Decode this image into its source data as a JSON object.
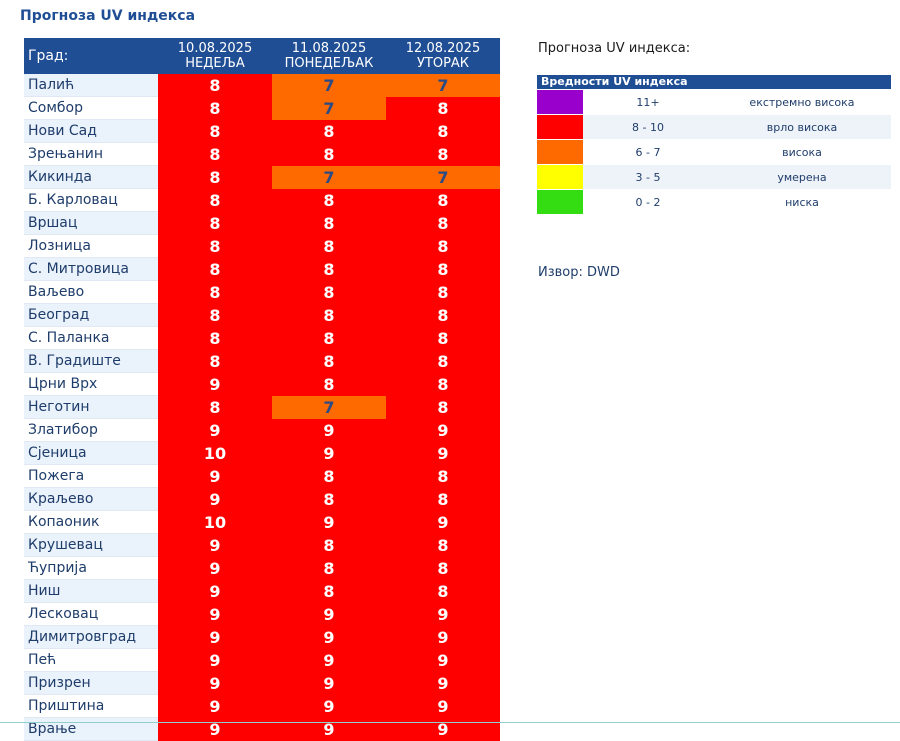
{
  "page_title": "Прогноза UV индекса",
  "table": {
    "city_header": "Град:",
    "days": [
      {
        "date": "10.08.2025",
        "weekday": "НЕДЕЉА"
      },
      {
        "date": "11.08.2025",
        "weekday": "ПОНЕДЕЉАК"
      },
      {
        "date": "12.08.2025",
        "weekday": "УТОРАК"
      }
    ],
    "rows": [
      {
        "city": "Палић",
        "values": [
          "8",
          "7",
          "7"
        ]
      },
      {
        "city": "Сомбор",
        "values": [
          "8",
          "7",
          "8"
        ]
      },
      {
        "city": "Нови Сад",
        "values": [
          "8",
          "8",
          "8"
        ]
      },
      {
        "city": "Зрењанин",
        "values": [
          "8",
          "8",
          "8"
        ]
      },
      {
        "city": "Кикинда",
        "values": [
          "8",
          "7",
          "7"
        ]
      },
      {
        "city": "Б. Карловац",
        "values": [
          "8",
          "8",
          "8"
        ]
      },
      {
        "city": "Вршац",
        "values": [
          "8",
          "8",
          "8"
        ]
      },
      {
        "city": "Лозница",
        "values": [
          "8",
          "8",
          "8"
        ]
      },
      {
        "city": "С. Митровица",
        "values": [
          "8",
          "8",
          "8"
        ]
      },
      {
        "city": "Ваљево",
        "values": [
          "8",
          "8",
          "8"
        ]
      },
      {
        "city": "Београд",
        "values": [
          "8",
          "8",
          "8"
        ]
      },
      {
        "city": "С. Паланка",
        "values": [
          "8",
          "8",
          "8"
        ]
      },
      {
        "city": "В. Градиште",
        "values": [
          "8",
          "8",
          "8"
        ]
      },
      {
        "city": "Црни Врх",
        "values": [
          "9",
          "8",
          "8"
        ]
      },
      {
        "city": "Неготин",
        "values": [
          "8",
          "7",
          "8"
        ]
      },
      {
        "city": "Златибор",
        "values": [
          "9",
          "9",
          "9"
        ]
      },
      {
        "city": "Сјеница",
        "values": [
          "10",
          "9",
          "9"
        ]
      },
      {
        "city": "Пожега",
        "values": [
          "9",
          "8",
          "8"
        ]
      },
      {
        "city": "Краљево",
        "values": [
          "9",
          "8",
          "8"
        ]
      },
      {
        "city": "Копаоник",
        "values": [
          "10",
          "9",
          "9"
        ]
      },
      {
        "city": "Крушевац",
        "values": [
          "9",
          "8",
          "8"
        ]
      },
      {
        "city": "Ћуприја",
        "values": [
          "9",
          "8",
          "8"
        ]
      },
      {
        "city": "Ниш",
        "values": [
          "9",
          "8",
          "8"
        ]
      },
      {
        "city": "Лесковац",
        "values": [
          "9",
          "9",
          "9"
        ]
      },
      {
        "city": "Димитровград",
        "values": [
          "9",
          "9",
          "9"
        ]
      },
      {
        "city": "Пећ",
        "values": [
          "9",
          "9",
          "9"
        ]
      },
      {
        "city": "Призрен",
        "values": [
          "9",
          "9",
          "9"
        ]
      },
      {
        "city": "Приштина",
        "values": [
          "9",
          "9",
          "9"
        ]
      },
      {
        "city": "Врање",
        "values": [
          "9",
          "9",
          "9"
        ]
      }
    ]
  },
  "legend": {
    "side_title": "Прогноза UV индекса:",
    "header": "Вредности UV индекса",
    "items": [
      {
        "range": "11+",
        "label": "екстремно висока",
        "color": "#9900cc"
      },
      {
        "range": "8 - 10",
        "label": "врло висока",
        "color": "#fe0000"
      },
      {
        "range": "6 - 7",
        "label": "висока",
        "color": "#ff6a00"
      },
      {
        "range": "3 - 5",
        "label": "умерена",
        "color": "#ffff00"
      },
      {
        "range": "0 - 2",
        "label": "ниска",
        "color": "#33dd11"
      }
    ]
  },
  "source": "Извор: DWD"
}
